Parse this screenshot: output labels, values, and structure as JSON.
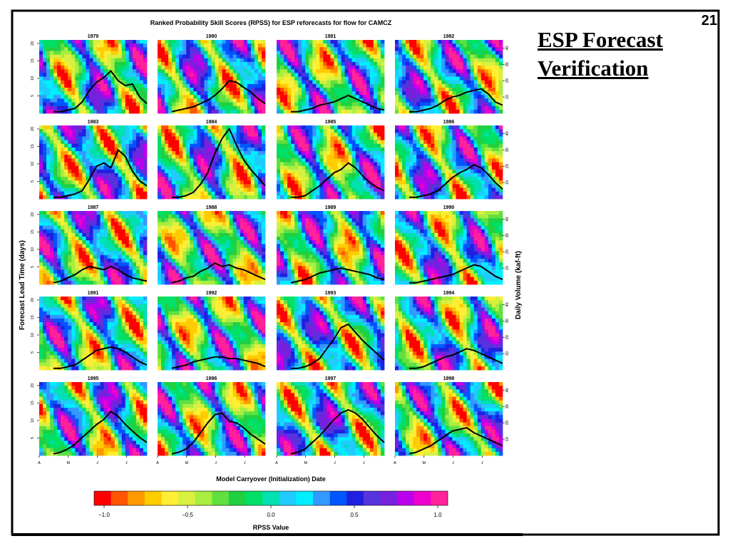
{
  "slide": {
    "number": "21",
    "title": "ESP Forecast Verification"
  },
  "chart_data": {
    "type": "heatmap",
    "title": "Ranked Probability Skill Scores (RPSS) for ESP reforecasts for flow for CAMCZ",
    "xlabel": "Model Carryover (Initialization) Date",
    "ylabel": "Forecast Lead Time (days)",
    "y2label": "Daily Volume (kaf-ft)",
    "x_tick_labels": [
      "A",
      "M",
      "J",
      "J"
    ],
    "y_ticks": [
      5,
      10,
      15,
      20
    ],
    "y2_ticks": [
      10,
      20,
      30,
      40
    ],
    "ylim": [
      0,
      21
    ],
    "y2lim": [
      0,
      45
    ],
    "grid": false,
    "years": [
      "1979",
      "1980",
      "1981",
      "1982",
      "1983",
      "1984",
      "1985",
      "1986",
      "1987",
      "1988",
      "1989",
      "1990",
      "1991",
      "1992",
      "1993",
      "1994",
      "1995",
      "1996",
      "1997",
      "1998"
    ],
    "flow_series": [
      {
        "year": "1979",
        "values": [
          1,
          1,
          2,
          3,
          7,
          14,
          19,
          22,
          26,
          20,
          17,
          18,
          10,
          6
        ]
      },
      {
        "year": "1980",
        "values": [
          1,
          2,
          3,
          4,
          6,
          8,
          11,
          15,
          20,
          19,
          16,
          13,
          9,
          6
        ]
      },
      {
        "year": "1981",
        "values": [
          1,
          1,
          2,
          3,
          5,
          6,
          7,
          9,
          11,
          9,
          7,
          5,
          3,
          2
        ]
      },
      {
        "year": "1982",
        "values": [
          1,
          1,
          2,
          3,
          5,
          8,
          10,
          11,
          13,
          14,
          15,
          12,
          7,
          5
        ]
      },
      {
        "year": "1983",
        "values": [
          1,
          1,
          2,
          3,
          5,
          12,
          20,
          22,
          19,
          30,
          26,
          17,
          11,
          8
        ]
      },
      {
        "year": "1984",
        "values": [
          1,
          1,
          2,
          4,
          9,
          16,
          28,
          37,
          43,
          33,
          24,
          18,
          13,
          8
        ]
      },
      {
        "year": "1985",
        "values": [
          1,
          1,
          2,
          5,
          8,
          12,
          16,
          18,
          22,
          19,
          14,
          10,
          7,
          5
        ]
      },
      {
        "year": "1986",
        "values": [
          1,
          1,
          2,
          3,
          5,
          9,
          13,
          16,
          18,
          21,
          19,
          15,
          10,
          6
        ]
      },
      {
        "year": "1987",
        "values": [
          1,
          2,
          4,
          6,
          9,
          11,
          10,
          9,
          11,
          9,
          6,
          4,
          3,
          2
        ]
      },
      {
        "year": "1988",
        "values": [
          1,
          2,
          4,
          5,
          8,
          10,
          13,
          11,
          12,
          10,
          9,
          7,
          5,
          3
        ]
      },
      {
        "year": "1989",
        "values": [
          1,
          2,
          3,
          5,
          7,
          8,
          9,
          10,
          9,
          8,
          7,
          6,
          4,
          3
        ]
      },
      {
        "year": "1990",
        "values": [
          1,
          1,
          2,
          3,
          4,
          5,
          6,
          8,
          10,
          12,
          11,
          8,
          5,
          3
        ]
      },
      {
        "year": "1991",
        "values": [
          1,
          1,
          2,
          3,
          6,
          9,
          12,
          13,
          14,
          13,
          11,
          8,
          5,
          3
        ]
      },
      {
        "year": "1992",
        "values": [
          1,
          2,
          3,
          5,
          6,
          7,
          8,
          8,
          7,
          7,
          6,
          5,
          4,
          2
        ]
      },
      {
        "year": "1993",
        "values": [
          1,
          1,
          2,
          4,
          7,
          13,
          19,
          26,
          28,
          23,
          18,
          14,
          10,
          6
        ]
      },
      {
        "year": "1994",
        "values": [
          1,
          1,
          2,
          4,
          6,
          8,
          9,
          11,
          13,
          12,
          10,
          8,
          6,
          4
        ]
      },
      {
        "year": "1995",
        "values": [
          1,
          2,
          4,
          7,
          11,
          15,
          19,
          22,
          27,
          24,
          19,
          15,
          11,
          8
        ]
      },
      {
        "year": "1996",
        "values": [
          1,
          2,
          4,
          8,
          14,
          20,
          25,
          26,
          21,
          20,
          17,
          13,
          10,
          7
        ]
      },
      {
        "year": "1997",
        "values": [
          1,
          2,
          4,
          8,
          12,
          17,
          22,
          26,
          28,
          26,
          22,
          17,
          12,
          8
        ]
      },
      {
        "year": "1998",
        "values": [
          1,
          2,
          4,
          6,
          9,
          12,
          15,
          16,
          17,
          14,
          12,
          10,
          8,
          6
        ]
      }
    ],
    "colorbar": {
      "label": "RPSS Value",
      "tick_labels": [
        "−1.0",
        "−0.5",
        "0.0",
        "0.5",
        "1.0"
      ],
      "colors": [
        "#ff0000",
        "#ff5500",
        "#ff9900",
        "#ffcc00",
        "#ffee33",
        "#d8f040",
        "#a8ee40",
        "#60e040",
        "#20d040",
        "#00e066",
        "#00e0b0",
        "#20ccff",
        "#00eeff",
        "#3399ff",
        "#0055ff",
        "#2020e0",
        "#5533dd",
        "#7720dd",
        "#bb00ee",
        "#ee00cc",
        "#ff2299"
      ]
    },
    "colors": {
      "flow_line": "#000000",
      "low_skill": "#ff0000",
      "high_skill": "#ff2299"
    }
  }
}
